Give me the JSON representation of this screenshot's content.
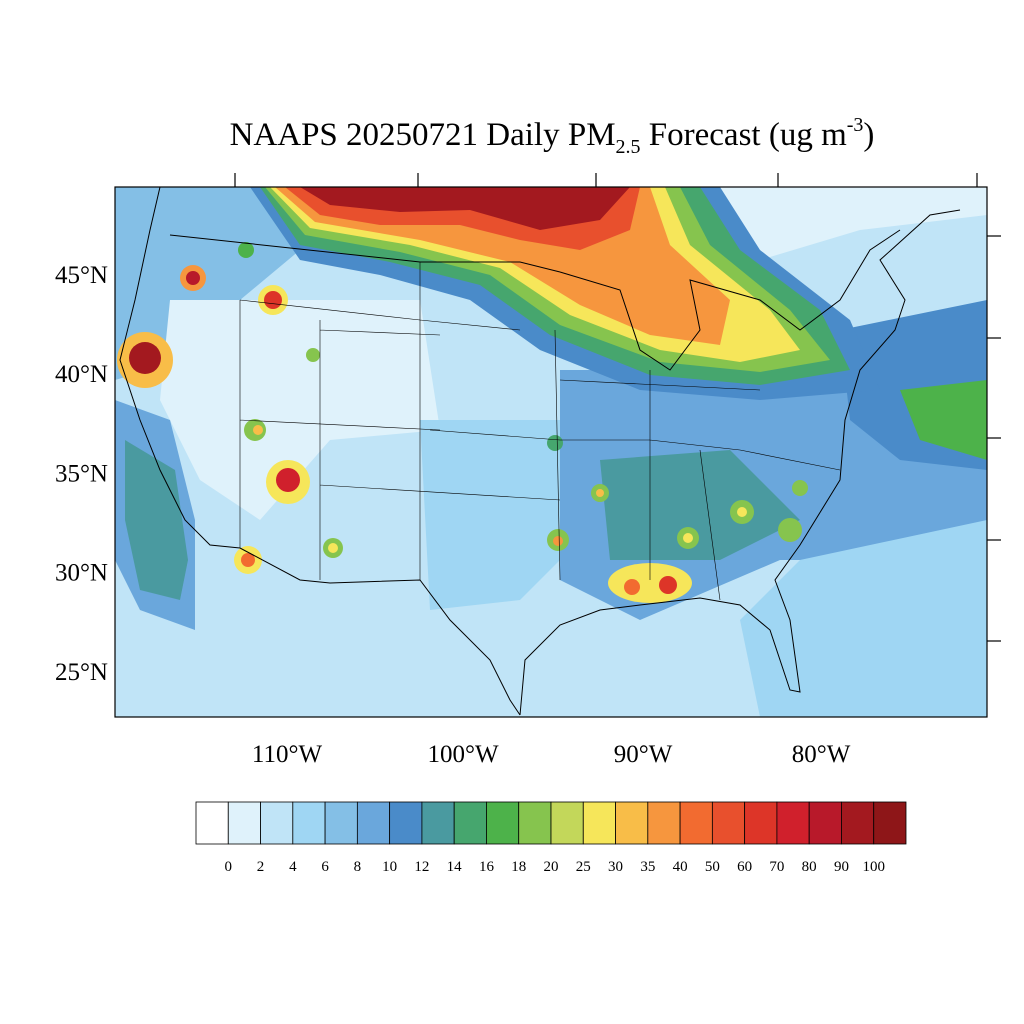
{
  "title": {
    "main": "NAAPS 20250721 Daily PM",
    "subscript": "2.5",
    "rest": " Forecast (ug m",
    "superscript": "-3",
    "end": ")"
  },
  "map": {
    "lat_labels": [
      "45°N",
      "40°N",
      "35°N",
      "30°N",
      "25°N"
    ],
    "lon_labels": [
      "110°W",
      "100°W",
      "90°W",
      "80°W"
    ]
  },
  "colorbar": {
    "levels": [
      0,
      2,
      4,
      6,
      8,
      10,
      12,
      14,
      16,
      18,
      20,
      25,
      30,
      35,
      40,
      50,
      60,
      70,
      80,
      90,
      100
    ],
    "colors": [
      "#ffffff",
      "#dff2fb",
      "#c0e4f7",
      "#9fd6f3",
      "#84bfe6",
      "#6aa7dc",
      "#4a8bc9",
      "#4a9aa0",
      "#46a66e",
      "#4db24a",
      "#86c44e",
      "#c3d75a",
      "#f6e65a",
      "#f8bd48",
      "#f6963e",
      "#f26b30",
      "#e8502d",
      "#dd3528",
      "#d0202c",
      "#b8192a",
      "#a3191f",
      "#8e1618"
    ]
  }
}
